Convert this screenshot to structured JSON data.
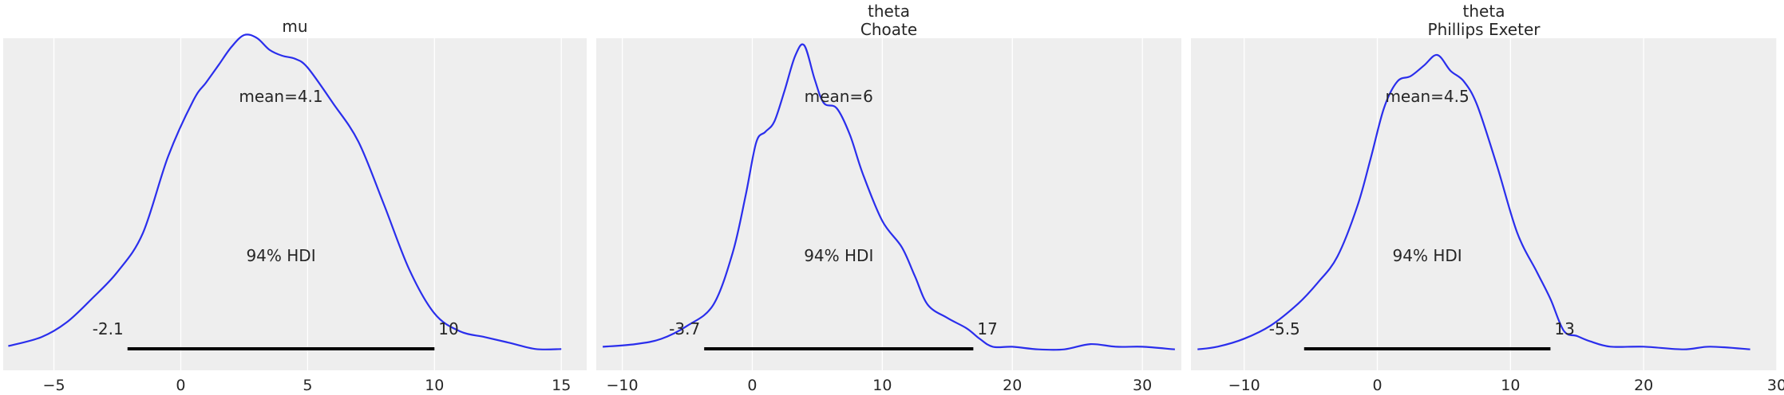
{
  "chart_data": [
    {
      "type": "line",
      "title": "mu",
      "xlim": [
        -7,
        16
      ],
      "ylim": [
        0,
        1
      ],
      "x_ticks": [
        -5,
        0,
        5,
        10,
        15
      ],
      "x_tick_labels": [
        "−5",
        "0",
        "5",
        "10",
        "15"
      ],
      "grid": true,
      "line_color": "#2a2eec",
      "density_x": [
        -6.8,
        -5.5,
        -4.5,
        -3.5,
        -2.5,
        -1.5,
        -0.5,
        0.5,
        1.0,
        1.5,
        2.0,
        2.5,
        3.0,
        3.5,
        4.0,
        4.5,
        5.0,
        6.0,
        7.0,
        8.0,
        9.0,
        10.0,
        11.0,
        12.0,
        13.0,
        14.0,
        15.0
      ],
      "density_y": [
        0.02,
        0.05,
        0.1,
        0.18,
        0.27,
        0.4,
        0.66,
        0.85,
        0.91,
        0.97,
        1.03,
        1.07,
        1.06,
        1.02,
        1.0,
        0.99,
        0.96,
        0.84,
        0.71,
        0.5,
        0.28,
        0.13,
        0.07,
        0.05,
        0.03,
        0.01,
        0.01
      ],
      "mean_label": "mean=4.1",
      "hdi_label": "94% HDI",
      "hdi": [
        -2.1,
        10
      ],
      "hdi_low_label": "-2.1",
      "hdi_high_label": "10"
    },
    {
      "type": "line",
      "title": "theta\nChoate",
      "xlim": [
        -12,
        33
      ],
      "ylim": [
        0,
        1
      ],
      "x_ticks": [
        -10,
        0,
        10,
        20,
        30
      ],
      "x_tick_labels": [
        "−10",
        "0",
        "10",
        "20",
        "30"
      ],
      "grid": true,
      "line_color": "#2a2eec",
      "density_x": [
        -11.5,
        -9,
        -7,
        -5,
        -3,
        -1.5,
        -0.5,
        0.3,
        1.0,
        1.7,
        2.5,
        3.3,
        4.0,
        4.8,
        5.5,
        6.5,
        7.5,
        8.5,
        10.0,
        11.5,
        12.5,
        13.5,
        15.0,
        16.5,
        17.5,
        18.5,
        20.0,
        22.0,
        24.0,
        26.0,
        28.0,
        30.0,
        32.5
      ],
      "density_y": [
        0.02,
        0.03,
        0.05,
        0.1,
        0.18,
        0.38,
        0.6,
        0.8,
        0.84,
        0.88,
        1.0,
        1.13,
        1.17,
        1.04,
        0.95,
        0.93,
        0.83,
        0.68,
        0.5,
        0.4,
        0.29,
        0.18,
        0.13,
        0.09,
        0.05,
        0.02,
        0.02,
        0.01,
        0.01,
        0.03,
        0.02,
        0.02,
        0.01
      ],
      "mean_label": "mean=6",
      "hdi_label": "94% HDI",
      "hdi": [
        -3.7,
        17
      ],
      "hdi_low_label": "-3.7",
      "hdi_high_label": "17"
    },
    {
      "type": "line",
      "title": "theta\nPhillips Exeter",
      "xlim": [
        -14,
        30
      ],
      "ylim": [
        0,
        1
      ],
      "x_ticks": [
        -10,
        0,
        10,
        20,
        30
      ],
      "x_tick_labels": [
        "−10",
        "0",
        "10",
        "20",
        "30"
      ],
      "grid": true,
      "line_color": "#2a2eec",
      "density_x": [
        -13.5,
        -12,
        -10,
        -8,
        -6,
        -4.5,
        -3,
        -1.5,
        -0.5,
        0.5,
        1.5,
        2.5,
        3.5,
        4.5,
        5.5,
        6.5,
        7.5,
        9.0,
        10.5,
        12.0,
        13.0,
        14.0,
        15.0,
        16.0,
        17.5,
        20.0,
        23.0,
        25.0,
        28.0
      ],
      "density_y": [
        0.01,
        0.02,
        0.05,
        0.1,
        0.18,
        0.26,
        0.36,
        0.55,
        0.73,
        0.92,
        1.02,
        1.04,
        1.08,
        1.12,
        1.06,
        1.02,
        0.93,
        0.7,
        0.45,
        0.3,
        0.2,
        0.08,
        0.06,
        0.04,
        0.02,
        0.02,
        0.01,
        0.02,
        0.01
      ],
      "mean_label": "mean=4.5",
      "hdi_label": "94% HDI",
      "hdi": [
        -5.5,
        13
      ],
      "hdi_low_label": "-5.5",
      "hdi_high_label": "13"
    }
  ]
}
